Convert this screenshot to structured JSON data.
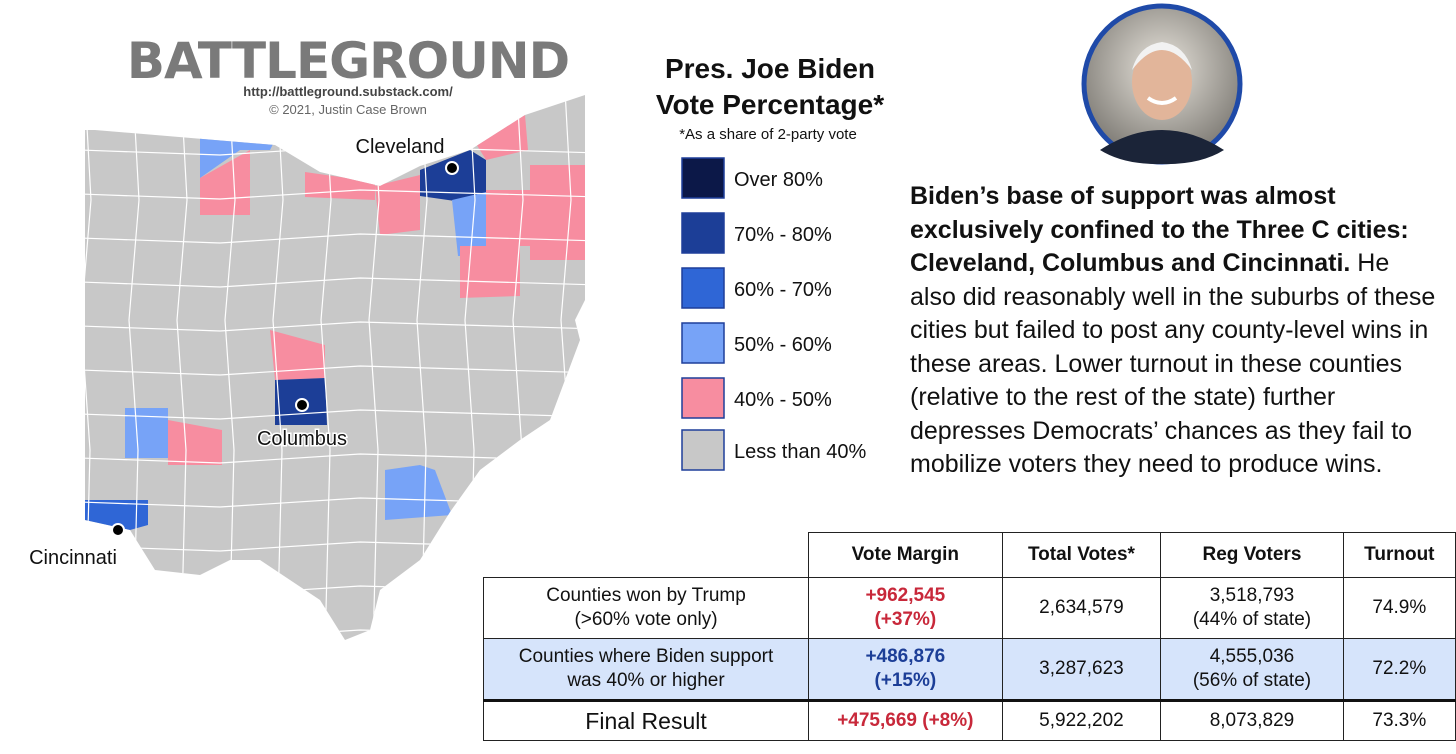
{
  "branding": {
    "title": "BATTLEGROUND",
    "url": "http://battleground.substack.com/",
    "copyright": "© 2021, Justin Case Brown"
  },
  "map": {
    "cities": [
      {
        "label": "Cleveland"
      },
      {
        "label": "Columbus"
      },
      {
        "label": "Cincinnati"
      }
    ]
  },
  "legend": {
    "title": [
      "Pres. Joe Biden",
      "Vote Percentage*"
    ],
    "note": "*As a share of 2-party vote",
    "items": [
      {
        "label": "Over 80%",
        "color": "#0c1848"
      },
      {
        "label": "70% - 80%",
        "color": "#1c3e97"
      },
      {
        "label": "60% - 70%",
        "color": "#2f66d6"
      },
      {
        "label": "50% - 60%",
        "color": "#77a3f7"
      },
      {
        "label": "40% - 50%",
        "color": "#f78da0"
      },
      {
        "label": "Less than 40%",
        "color": "#c8c8c8"
      }
    ]
  },
  "commentary": {
    "bold": "Biden’s base of support was almost exclusively confined to the Three C cities: Cleveland, Columbus and Cincinnati.",
    "text": "He also did reasonably well in the suburbs of these cities but failed to post any county-level wins in these areas. Lower turnout in these counties (relative to the rest of the state) further depresses Democrats’ chances as they fail to mobilize voters they need to produce wins."
  },
  "table": {
    "header": [
      "Vote Margin",
      "Total Votes*",
      "Reg Voters",
      "Turnout"
    ],
    "rows": [
      {
        "cells": [
          [
            "Counties won by Trump",
            "(>60% vote only)"
          ],
          [
            "+962,545",
            "(+37%)"
          ],
          [
            "2,634,579"
          ],
          [
            "3,518,793",
            "(44% of state)"
          ],
          [
            "74.9%"
          ]
        ],
        "margin_color": "#c8283a",
        "background": "#ffffff"
      },
      {
        "cells": [
          [
            "Counties where Biden support",
            "was 40% or higher"
          ],
          [
            "+486,876",
            "(+15%)"
          ],
          [
            "3,287,623"
          ],
          [
            "4,555,036",
            "(56% of state)"
          ],
          [
            "72.2%"
          ]
        ],
        "margin_color": "#1c3e97",
        "background": "#d6e4fb"
      },
      {
        "cells": [
          [
            "Final Result"
          ],
          [
            "+475,669 (+8%)"
          ],
          [
            "5,922,202"
          ],
          [
            "8,073,829"
          ],
          [
            "73.3%"
          ]
        ],
        "margin_color": "#c8283a",
        "background": "#ffffff"
      }
    ]
  }
}
